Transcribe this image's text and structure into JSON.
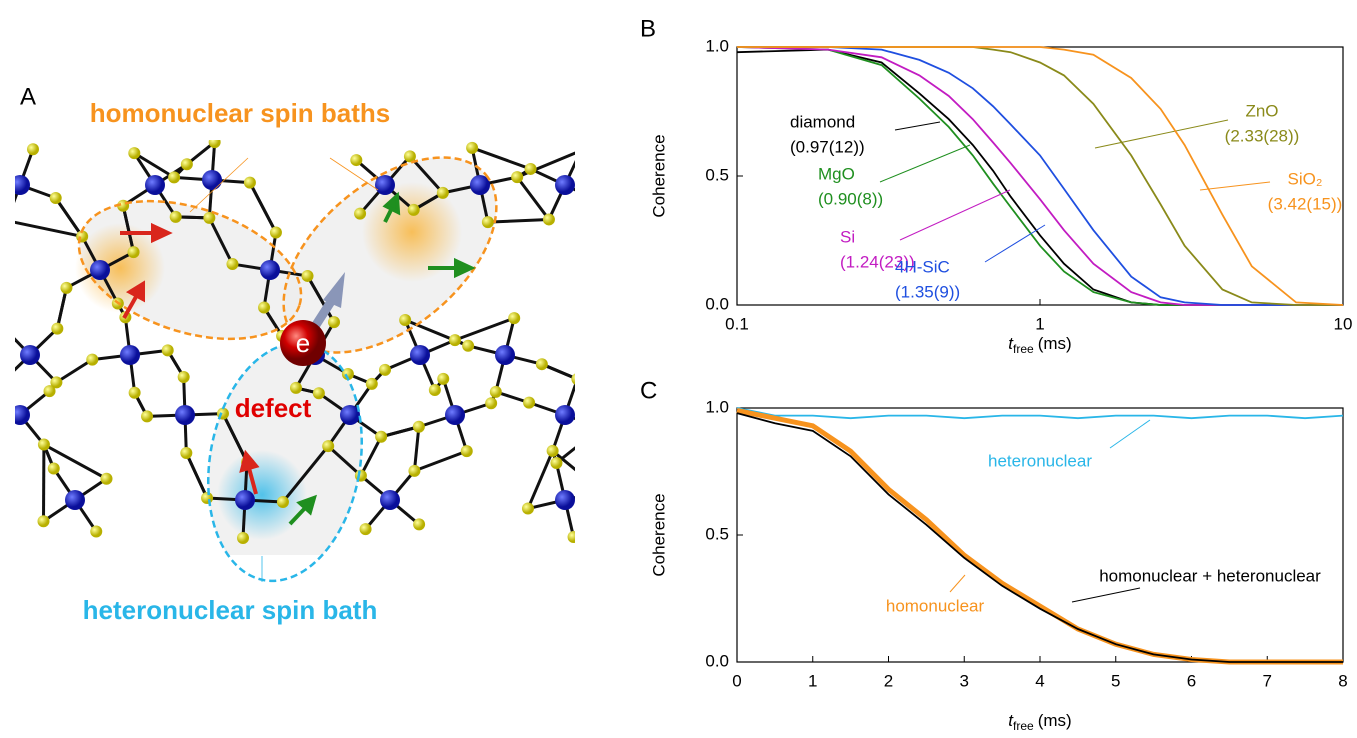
{
  "diagram": {
    "panel": "A",
    "title": "homonuclear spin baths",
    "subtitle": "heteronuclear spin bath",
    "defect": "defect",
    "electron": "e"
  },
  "chart_data": [
    {
      "type": "line",
      "panel": "B",
      "ylabel": "Coherence",
      "xlabel": {
        "symbol": "t",
        "subscript": "free",
        "unit": "(ms)"
      },
      "log_x": true,
      "xlim": [
        0.1,
        10
      ],
      "xticks": [
        0.1,
        1,
        10
      ],
      "ylim": [
        0,
        1
      ],
      "yticks": [
        {
          "value": 0,
          "label": "0.0"
        },
        {
          "value": 0.5,
          "label": "0.5"
        },
        {
          "value": 1,
          "label": "1.0"
        }
      ],
      "x": [
        0.1,
        0.2,
        0.3,
        0.4,
        0.5,
        0.6,
        0.7,
        0.8,
        1,
        1.2,
        1.5,
        2,
        2.5,
        3,
        4,
        5,
        7,
        10
      ],
      "series": [
        {
          "name": "diamond",
          "annotation": "(0.97(12))",
          "color": "#000000",
          "values": [
            0.98,
            0.99,
            0.94,
            0.82,
            0.72,
            0.62,
            0.52,
            0.42,
            0.27,
            0.16,
            0.06,
            0.01,
            0,
            0,
            0,
            0,
            0,
            0
          ]
        },
        {
          "name": "MgO",
          "annotation": "(0.90(8))",
          "color": "#1f8f1f",
          "values": [
            1,
            0.99,
            0.93,
            0.8,
            0.69,
            0.58,
            0.47,
            0.38,
            0.23,
            0.13,
            0.05,
            0.01,
            0,
            0,
            0,
            0,
            0,
            0
          ]
        },
        {
          "name": "Si",
          "annotation": "(1.24(23))",
          "color": "#c21cc2",
          "values": [
            1,
            0.99,
            0.96,
            0.89,
            0.81,
            0.72,
            0.63,
            0.55,
            0.41,
            0.29,
            0.16,
            0.05,
            0.01,
            0,
            0,
            0,
            0,
            0
          ]
        },
        {
          "name": "4H-SiC",
          "annotation": "(1.35(9))",
          "color": "#1f4fe0",
          "values": [
            1,
            1,
            0.99,
            0.95,
            0.9,
            0.84,
            0.77,
            0.7,
            0.58,
            0.45,
            0.29,
            0.11,
            0.03,
            0.01,
            0,
            0,
            0,
            0
          ]
        },
        {
          "name": "ZnO",
          "annotation": "(2.33(28))",
          "color": "#8a8a1a",
          "values": [
            1,
            1,
            1,
            1,
            1,
            1,
            0.99,
            0.98,
            0.94,
            0.89,
            0.78,
            0.58,
            0.39,
            0.23,
            0.06,
            0.01,
            0,
            0
          ]
        },
        {
          "name": "SiO₂",
          "annotation": "(3.42(15))",
          "color": "#f7931e",
          "values": [
            1,
            1,
            1,
            1,
            1,
            1,
            1,
            1,
            1,
            0.99,
            0.97,
            0.88,
            0.76,
            0.62,
            0.35,
            0.15,
            0.01,
            0
          ]
        }
      ]
    },
    {
      "type": "line",
      "panel": "C",
      "ylabel": "Coherence",
      "xlabel": {
        "symbol": "t",
        "subscript": "free",
        "unit": "(ms)"
      },
      "log_x": false,
      "xlim": [
        0,
        8
      ],
      "xticks": [
        0,
        1,
        2,
        3,
        4,
        5,
        6,
        7,
        8
      ],
      "ylim": [
        0,
        1
      ],
      "yticks": [
        {
          "value": 0,
          "label": "0.0"
        },
        {
          "value": 0.5,
          "label": "0.5"
        },
        {
          "value": 1,
          "label": "1.0"
        }
      ],
      "x": [
        0,
        0.5,
        1,
        1.5,
        2,
        2.5,
        3,
        3.5,
        4,
        4.5,
        5,
        5.5,
        6,
        6.5,
        7,
        7.5,
        8
      ],
      "series": [
        {
          "name": "heteronuclear",
          "color": "#29b6e8",
          "values": [
            1,
            0.97,
            0.97,
            0.96,
            0.97,
            0.97,
            0.96,
            0.97,
            0.97,
            0.96,
            0.97,
            0.97,
            0.96,
            0.97,
            0.97,
            0.96,
            0.97
          ]
        },
        {
          "name": "homonuclear",
          "color": "#f7931e",
          "values": [
            0.99,
            0.96,
            0.93,
            0.83,
            0.68,
            0.56,
            0.42,
            0.31,
            0.22,
            0.13,
            0.07,
            0.03,
            0.01,
            0,
            0,
            0,
            0
          ]
        },
        {
          "name": "homonuclear + heteronuclear",
          "color": "#000000",
          "values": [
            0.98,
            0.94,
            0.91,
            0.81,
            0.66,
            0.54,
            0.41,
            0.3,
            0.21,
            0.13,
            0.07,
            0.03,
            0.01,
            0,
            0,
            0,
            0
          ]
        }
      ]
    }
  ]
}
